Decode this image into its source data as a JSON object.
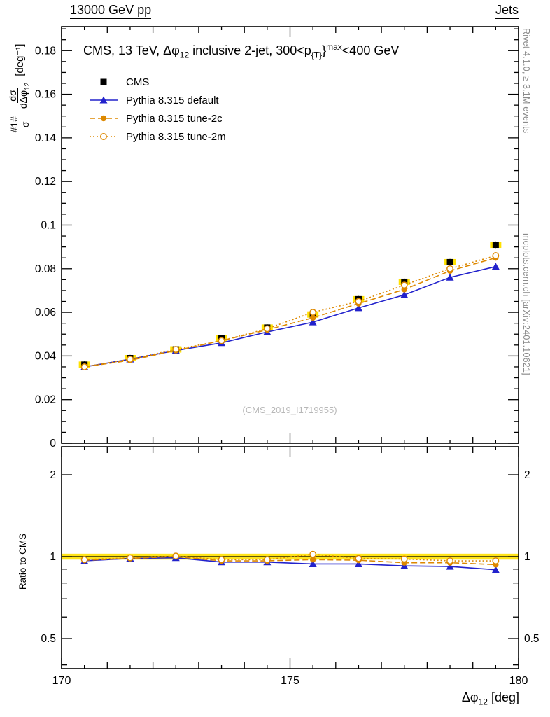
{
  "header": {
    "left": "13000 GeV pp",
    "right": "Jets"
  },
  "title": {
    "p1": "CMS, 13 TeV, ",
    "p2": "Δφ",
    "p2_sub": "12",
    "p3": " inclusive 2-jet, 300<p",
    "p4_sub": "{T}",
    "p4_brace": "}",
    "p4_sup": "max",
    "p5": "<400 GeV"
  },
  "ylabel": {
    "num1": "#1#",
    "den1": "σ",
    "num2": "dσ",
    "den2": "dΔφ",
    "den2_sub": "12",
    "unit": "[deg⁻¹]"
  },
  "xlabel": {
    "main": "Δφ",
    "sub": "12",
    "unit": " [deg]"
  },
  "ratio_label": "Ratio to CMS",
  "watermark": "(CMS_2019_I1719955)",
  "side_notes": {
    "top": "Rivet 4.1.0, ≥ 3.1M events",
    "bottom": "mcplots.cern.ch [arXiv:2401.10621]"
  },
  "colors": {
    "cms": "#000000",
    "pythia_default": "#2222cc",
    "pythia_tunes": "#dd8800",
    "band": "#ffe100",
    "frame": "#000000",
    "side_text": "#8a8a8a",
    "watermark": "#b8b8b8"
  },
  "chart_data": {
    "type": "line",
    "title": "CMS, 13 TeV, Δφ12 inclusive 2-jet, 300<pT,max<400 GeV",
    "xlabel": "Δφ12 [deg]",
    "ylabel": "1/σ dσ/dΔφ12 [deg⁻¹]",
    "ratio_label": "Ratio to CMS",
    "x": [
      170.5,
      171.5,
      172.5,
      173.5,
      174.5,
      175.5,
      176.5,
      177.5,
      178.5,
      179.5
    ],
    "xlim": [
      170,
      180
    ],
    "ylim": [
      0,
      0.191
    ],
    "ratio_ylim": [
      0.387,
      2.53
    ],
    "ratio_scale": "log",
    "xticks": {
      "values": [
        170,
        175,
        180
      ],
      "labels": [
        "170",
        "175",
        "180"
      ]
    },
    "yticks": {
      "values": [
        0,
        0.02,
        0.04,
        0.06,
        0.08,
        0.1,
        0.12,
        0.14,
        0.16,
        0.18
      ],
      "labels": [
        "0",
        "0.02",
        "0.04",
        "0.06",
        "0.08",
        "0.1",
        "0.12",
        "0.14",
        "0.16",
        "0.18"
      ]
    },
    "ratio_yticks": {
      "values": [
        0.5,
        1,
        2
      ],
      "labels": [
        "0.5",
        "1",
        "2"
      ]
    },
    "ratio_minor_ticks": [
      0.4,
      0.6,
      0.7,
      0.8,
      0.9
    ],
    "ratio_band": [
      0.975,
      1.025
    ],
    "series": [
      {
        "name": "CMS",
        "role": "data",
        "marker": "square",
        "color": "#000000",
        "err": 0.0015,
        "values": [
          0.036,
          0.039,
          0.043,
          0.048,
          0.053,
          0.059,
          0.066,
          0.074,
          0.083,
          0.091
        ]
      },
      {
        "name": "Pythia 8.315 default",
        "marker": "triangle",
        "line": "solid",
        "color": "#2222cc",
        "values": [
          0.035,
          0.0385,
          0.0425,
          0.046,
          0.051,
          0.0555,
          0.062,
          0.068,
          0.076,
          0.081
        ],
        "ratio": [
          0.965,
          0.985,
          0.99,
          0.955,
          0.955,
          0.94,
          0.94,
          0.925,
          0.92,
          0.895
        ]
      },
      {
        "name": "Pythia 8.315 tune-2c",
        "marker": "circle",
        "line": "dashed",
        "color": "#dd8800",
        "values": [
          0.035,
          0.038,
          0.0425,
          0.047,
          0.052,
          0.0575,
          0.064,
          0.0705,
          0.079,
          0.085
        ],
        "ratio": [
          0.97,
          0.985,
          1.0,
          0.965,
          0.965,
          0.975,
          0.97,
          0.95,
          0.95,
          0.935
        ]
      },
      {
        "name": "Pythia 8.315 tune-2m",
        "marker": "circle-open",
        "line": "dotted",
        "color": "#dd8800",
        "values": [
          0.035,
          0.0385,
          0.043,
          0.047,
          0.0525,
          0.06,
          0.065,
          0.0725,
          0.08,
          0.086
        ],
        "ratio": [
          0.975,
          0.99,
          1.005,
          0.975,
          0.975,
          1.02,
          0.985,
          0.98,
          0.965,
          0.965
        ]
      }
    ]
  }
}
